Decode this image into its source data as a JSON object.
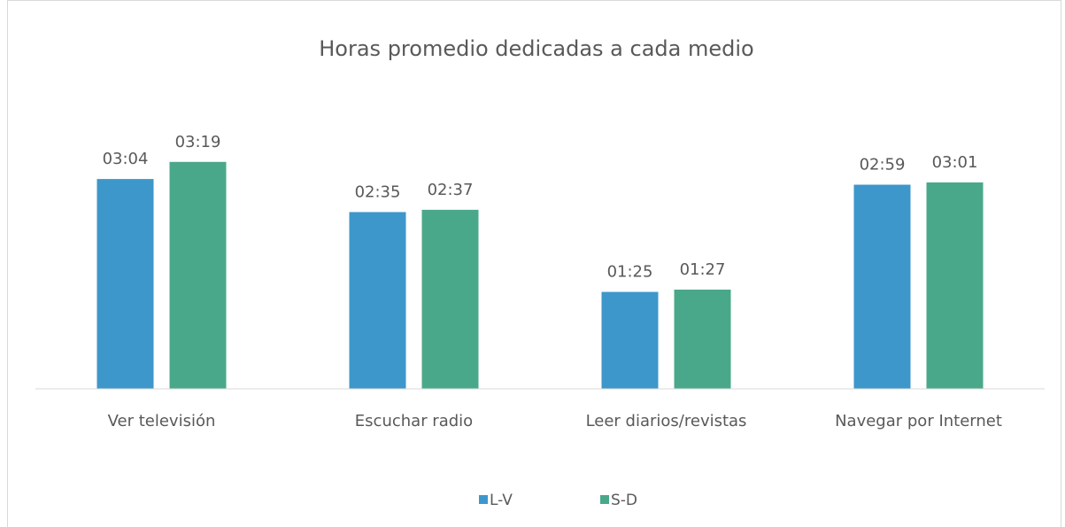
{
  "chart_data": {
    "type": "bar",
    "title": "Horas promedio dedicadas a cada medio",
    "categories": [
      "Ver televisión",
      "Escuchar radio",
      "Leer diarios/revistas",
      "Navegar por Internet"
    ],
    "series": [
      {
        "name": "L-V",
        "color": "#3d97cb",
        "values": [
          184,
          155,
          85,
          179
        ],
        "value_labels": [
          "03:04",
          "02:35",
          "01:25",
          "02:59"
        ]
      },
      {
        "name": "S-D",
        "color": "#4aa88a",
        "values": [
          199,
          157,
          87,
          181
        ],
        "value_labels": [
          "03:19",
          "02:37",
          "01:27",
          "03:01"
        ]
      }
    ],
    "ylim": [
      0,
      240
    ],
    "legend": "bottom"
  }
}
